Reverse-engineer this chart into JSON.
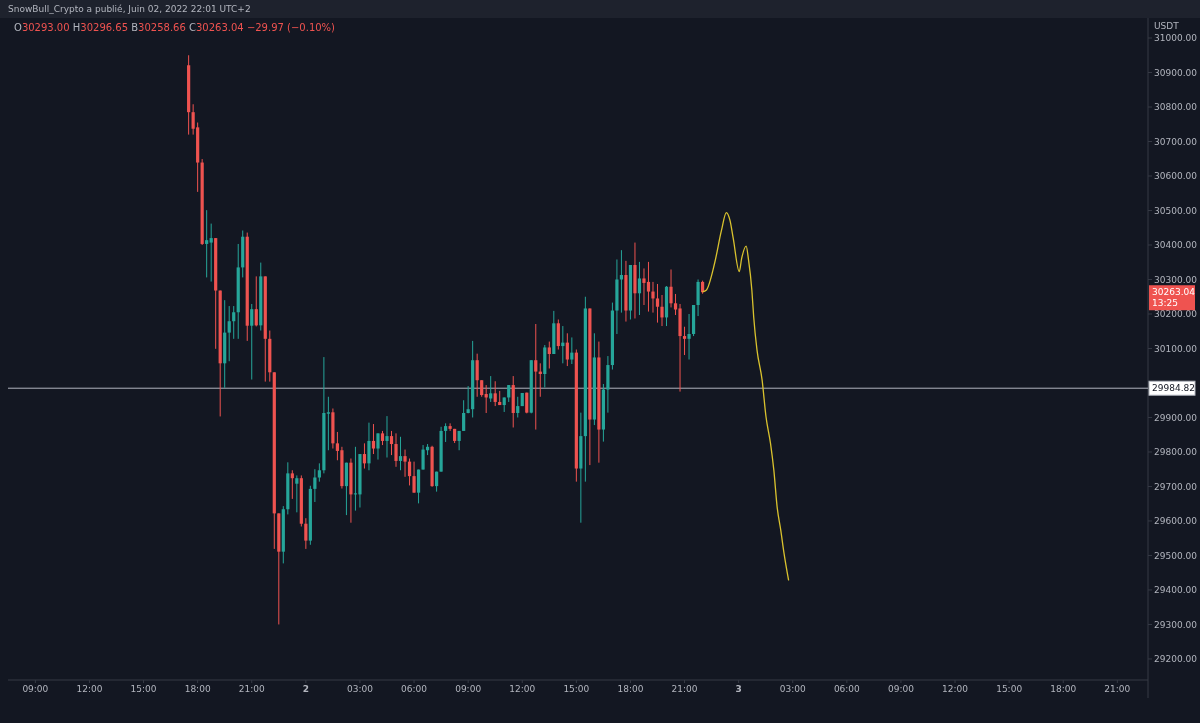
{
  "chart_data": {
    "type": "candlestick",
    "title": "SnowBull_Crypto a publié, Juin 02, 2022 22:01 UTC+2",
    "subtitle": "O30293.00 H30296.65 B30258.66 C30263.04 −29.97 (−0.10%)",
    "ylabel": "USDT",
    "xlim": [
      "2022-06-01T07:29",
      "2022-06-03T22:42"
    ],
    "ylim": [
      29139,
      31058
    ],
    "xticks": [
      {
        "value": "2022-06-01T09:00",
        "label": "09:00"
      },
      {
        "value": "2022-06-01T12:00",
        "label": "12:00"
      },
      {
        "value": "2022-06-01T15:00",
        "label": "15:00"
      },
      {
        "value": "2022-06-01T18:00",
        "label": "18:00"
      },
      {
        "value": "2022-06-01T21:00",
        "label": "21:00"
      },
      {
        "value": "2022-06-02T00:00",
        "label": "2"
      },
      {
        "value": "2022-06-02T03:00",
        "label": "03:00"
      },
      {
        "value": "2022-06-02T06:00",
        "label": "06:00"
      },
      {
        "value": "2022-06-02T09:00",
        "label": "09:00"
      },
      {
        "value": "2022-06-02T12:00",
        "label": "12:00"
      },
      {
        "value": "2022-06-02T15:00",
        "label": "15:00"
      },
      {
        "value": "2022-06-02T18:00",
        "label": "18:00"
      },
      {
        "value": "2022-06-02T21:00",
        "label": "21:00"
      },
      {
        "value": "2022-06-03T00:00",
        "label": "3"
      },
      {
        "value": "2022-06-03T03:00",
        "label": "03:00"
      },
      {
        "value": "2022-06-03T06:00",
        "label": "06:00"
      },
      {
        "value": "2022-06-03T09:00",
        "label": "09:00"
      },
      {
        "value": "2022-06-03T12:00",
        "label": "12:00"
      },
      {
        "value": "2022-06-03T15:00",
        "label": "15:00"
      },
      {
        "value": "2022-06-03T18:00",
        "label": "18:00"
      },
      {
        "value": "2022-06-03T21:00",
        "label": "21:00"
      }
    ],
    "yticks": [
      {
        "value": 29200,
        "label": "29200.00"
      },
      {
        "value": 29300,
        "label": "29300.00"
      },
      {
        "value": 29400,
        "label": "29400.00"
      },
      {
        "value": 29500,
        "label": "29500.00"
      },
      {
        "value": 29600,
        "label": "29600.00"
      },
      {
        "value": 29700,
        "label": "29700.00"
      },
      {
        "value": 29800,
        "label": "29800.00"
      },
      {
        "value": 29900,
        "label": "29900.00"
      },
      {
        "value": 30000,
        "label": null
      },
      {
        "value": 30100,
        "label": "30100.00"
      },
      {
        "value": 30200,
        "label": "30200.00"
      },
      {
        "value": 30300,
        "label": "30300.00"
      },
      {
        "value": 30400,
        "label": "30400.00"
      },
      {
        "value": 30500,
        "label": "30500.00"
      },
      {
        "value": 30600,
        "label": "30600.00"
      },
      {
        "value": 30700,
        "label": "30700.00"
      },
      {
        "value": 30800,
        "label": "30800.00"
      },
      {
        "value": 30900,
        "label": "30900.00"
      },
      {
        "value": 31000,
        "label": "31000.00"
      }
    ],
    "x": [
      "2022-06-01T17:30",
      "2022-06-01T17:45",
      "2022-06-01T18:00",
      "2022-06-01T18:15",
      "2022-06-01T18:30",
      "2022-06-01T18:45",
      "2022-06-01T19:00",
      "2022-06-01T19:15",
      "2022-06-01T19:30",
      "2022-06-01T19:45",
      "2022-06-01T20:00",
      "2022-06-01T20:15",
      "2022-06-01T20:30",
      "2022-06-01T20:45",
      "2022-06-01T21:00",
      "2022-06-01T21:15",
      "2022-06-01T21:30",
      "2022-06-01T21:45",
      "2022-06-01T22:00",
      "2022-06-01T22:15",
      "2022-06-01T22:30",
      "2022-06-01T22:45",
      "2022-06-01T23:00",
      "2022-06-01T23:15",
      "2022-06-01T23:30",
      "2022-06-01T23:45",
      "2022-06-02T00:00",
      "2022-06-02T00:15",
      "2022-06-02T00:30",
      "2022-06-02T00:45",
      "2022-06-02T01:00",
      "2022-06-02T01:15",
      "2022-06-02T01:30",
      "2022-06-02T01:45",
      "2022-06-02T02:00",
      "2022-06-02T02:15",
      "2022-06-02T02:30",
      "2022-06-02T02:45",
      "2022-06-02T03:00",
      "2022-06-02T03:15",
      "2022-06-02T03:30",
      "2022-06-02T03:45",
      "2022-06-02T04:00",
      "2022-06-02T04:15",
      "2022-06-02T04:30",
      "2022-06-02T04:45",
      "2022-06-02T05:00",
      "2022-06-02T05:15",
      "2022-06-02T05:30",
      "2022-06-02T05:45",
      "2022-06-02T06:00",
      "2022-06-02T06:15",
      "2022-06-02T06:30",
      "2022-06-02T06:45",
      "2022-06-02T07:00",
      "2022-06-02T07:15",
      "2022-06-02T07:30",
      "2022-06-02T07:45",
      "2022-06-02T08:00",
      "2022-06-02T08:15",
      "2022-06-02T08:30",
      "2022-06-02T08:45",
      "2022-06-02T09:00",
      "2022-06-02T09:15",
      "2022-06-02T09:30",
      "2022-06-02T09:45",
      "2022-06-02T10:00",
      "2022-06-02T10:15",
      "2022-06-02T10:30",
      "2022-06-02T10:45",
      "2022-06-02T11:00",
      "2022-06-02T11:15",
      "2022-06-02T11:30",
      "2022-06-02T11:45",
      "2022-06-02T12:00",
      "2022-06-02T12:15",
      "2022-06-02T12:30",
      "2022-06-02T12:45",
      "2022-06-02T13:00",
      "2022-06-02T13:15",
      "2022-06-02T13:30",
      "2022-06-02T13:45",
      "2022-06-02T14:00",
      "2022-06-02T14:15",
      "2022-06-02T14:30",
      "2022-06-02T14:45",
      "2022-06-02T15:00",
      "2022-06-02T15:15",
      "2022-06-02T15:30",
      "2022-06-02T15:45",
      "2022-06-02T16:00",
      "2022-06-02T16:15",
      "2022-06-02T16:30",
      "2022-06-02T16:45",
      "2022-06-02T17:00",
      "2022-06-02T17:15",
      "2022-06-02T17:30",
      "2022-06-02T17:45",
      "2022-06-02T18:00",
      "2022-06-02T18:15",
      "2022-06-02T18:30",
      "2022-06-02T18:45",
      "2022-06-02T19:00",
      "2022-06-02T19:15",
      "2022-06-02T19:30",
      "2022-06-02T19:45",
      "2022-06-02T20:00",
      "2022-06-02T20:15",
      "2022-06-02T20:30",
      "2022-06-02T20:45",
      "2022-06-02T21:00",
      "2022-06-02T21:15",
      "2022-06-02T21:30",
      "2022-06-02T21:45",
      "2022-06-02T22:00"
    ],
    "ohlc": [
      [
        30921,
        30950,
        30720,
        30785
      ],
      [
        30785,
        30808,
        30720,
        30737
      ],
      [
        30741,
        30755,
        30554,
        30639
      ],
      [
        30639,
        30649,
        30400,
        30403
      ],
      [
        30403,
        30501,
        30306,
        30414
      ],
      [
        30407,
        30462,
        30294,
        30420
      ],
      [
        30420,
        30420,
        30099,
        30268
      ],
      [
        30268,
        30268,
        29903,
        30057
      ],
      [
        30057,
        30240,
        29986,
        30146
      ],
      [
        30146,
        30223,
        30063,
        30179
      ],
      [
        30179,
        30223,
        30128,
        30205
      ],
      [
        30205,
        30403,
        30128,
        30335
      ],
      [
        30335,
        30442,
        30306,
        30424
      ],
      [
        30424,
        30436,
        30122,
        30166
      ],
      [
        30166,
        30229,
        30010,
        30214
      ],
      [
        30214,
        30309,
        30164,
        30167
      ],
      [
        30167,
        30349,
        30152,
        30309
      ],
      [
        30309,
        30309,
        30004,
        30128
      ],
      [
        30128,
        30152,
        30004,
        30031
      ],
      [
        30031,
        30031,
        29519,
        29622
      ],
      [
        29622,
        29622,
        29300,
        29511
      ],
      [
        29511,
        29643,
        29477,
        29634
      ],
      [
        29634,
        29770,
        29619,
        29738
      ],
      [
        29738,
        29747,
        29664,
        29724
      ],
      [
        29708,
        29732,
        29625,
        29724
      ],
      [
        29724,
        29732,
        29584,
        29592
      ],
      [
        29592,
        29608,
        29519,
        29543
      ],
      [
        29543,
        29702,
        29531,
        29693
      ],
      [
        29693,
        29750,
        29655,
        29726
      ],
      [
        29726,
        29767,
        29714,
        29747
      ],
      [
        29747,
        30075,
        29738,
        29913
      ],
      [
        29911,
        29960,
        29805,
        29915
      ],
      [
        29915,
        29926,
        29810,
        29825
      ],
      [
        29825,
        29858,
        29776,
        29803
      ],
      [
        29805,
        29815,
        29694,
        29701
      ],
      [
        29701,
        29769,
        29617,
        29769
      ],
      [
        29769,
        29781,
        29595,
        29677
      ],
      [
        29677,
        29815,
        29630,
        29680
      ],
      [
        29677,
        29794,
        29639,
        29794
      ],
      [
        29794,
        29825,
        29752,
        29767
      ],
      [
        29767,
        29885,
        29747,
        29832
      ],
      [
        29832,
        29881,
        29794,
        29810
      ],
      [
        29810,
        29854,
        29778,
        29854
      ],
      [
        29854,
        29861,
        29820,
        29832
      ],
      [
        29832,
        29904,
        29784,
        29846
      ],
      [
        29846,
        29861,
        29791,
        29823
      ],
      [
        29823,
        29854,
        29757,
        29774
      ],
      [
        29774,
        29844,
        29747,
        29788
      ],
      [
        29788,
        29807,
        29728,
        29772
      ],
      [
        29772,
        29781,
        29703,
        29730
      ],
      [
        29730,
        29772,
        29682,
        29682
      ],
      [
        29682,
        29749,
        29651,
        29749
      ],
      [
        29749,
        29820,
        29749,
        29807
      ],
      [
        29805,
        29823,
        29791,
        29815
      ],
      [
        29815,
        29818,
        29699,
        29701
      ],
      [
        29701,
        29743,
        29685,
        29743
      ],
      [
        29743,
        29873,
        29743,
        29861
      ],
      [
        29861,
        29883,
        29829,
        29875
      ],
      [
        29875,
        29883,
        29861,
        29867
      ],
      [
        29867,
        29867,
        29826,
        29832
      ],
      [
        29832,
        29861,
        29805,
        29861
      ],
      [
        29861,
        29950,
        29861,
        29913
      ],
      [
        29913,
        29991,
        29912,
        29924
      ],
      [
        29924,
        30122,
        29900,
        30066
      ],
      [
        30066,
        30085,
        29960,
        30008
      ],
      [
        30008,
        30008,
        29960,
        29965
      ],
      [
        29968,
        29994,
        29913,
        29958
      ],
      [
        29955,
        30020,
        29945,
        29970
      ],
      [
        29970,
        30005,
        29933,
        29945
      ],
      [
        29945,
        29977,
        29936,
        29936
      ],
      [
        29936,
        29958,
        29916,
        29958
      ],
      [
        29958,
        29994,
        29945,
        29994
      ],
      [
        29994,
        30020,
        29871,
        29913
      ],
      [
        29913,
        29960,
        29900,
        29933
      ],
      [
        29933,
        29971,
        29933,
        29971
      ],
      [
        29972,
        29972,
        29912,
        29914
      ],
      [
        29914,
        30066,
        29912,
        30066
      ],
      [
        30066,
        30171,
        29865,
        30033
      ],
      [
        30033,
        30057,
        29960,
        30026
      ],
      [
        30026,
        30110,
        29987,
        30103
      ],
      [
        30103,
        30120,
        30042,
        30084
      ],
      [
        30084,
        30209,
        30084,
        30173
      ],
      [
        30173,
        30184,
        30097,
        30107
      ],
      [
        30107,
        30165,
        30057,
        30117
      ],
      [
        30117,
        30144,
        30049,
        30068
      ],
      [
        30068,
        30132,
        30055,
        30088
      ],
      [
        30088,
        30097,
        29714,
        29752
      ],
      [
        29752,
        29914,
        29595,
        29846
      ],
      [
        29846,
        30250,
        29714,
        30216
      ],
      [
        30216,
        30216,
        29762,
        29894
      ],
      [
        29894,
        30144,
        29878,
        30074
      ],
      [
        30074,
        30120,
        29769,
        29865
      ],
      [
        29865,
        29997,
        29830,
        29981
      ],
      [
        29981,
        30078,
        29914,
        30052
      ],
      [
        30052,
        30233,
        30039,
        30210
      ],
      [
        30210,
        30358,
        30142,
        30300
      ],
      [
        30300,
        30385,
        30204,
        30313
      ],
      [
        30313,
        30354,
        30178,
        30210
      ],
      [
        30210,
        30342,
        30184,
        30342
      ],
      [
        30342,
        30407,
        30187,
        30260
      ],
      [
        30260,
        30351,
        30197,
        30303
      ],
      [
        30303,
        30332,
        30226,
        30290
      ],
      [
        30293,
        30351,
        30207,
        30265
      ],
      [
        30265,
        30293,
        30204,
        30245
      ],
      [
        30245,
        30287,
        30175,
        30221
      ],
      [
        30221,
        30255,
        30165,
        30190
      ],
      [
        30190,
        30281,
        30165,
        30279
      ],
      [
        30279,
        30329,
        30219,
        30231
      ],
      [
        30231,
        30258,
        30197,
        30213
      ],
      [
        30216,
        30229,
        29975,
        30136
      ],
      [
        30136,
        30163,
        30081,
        30128
      ],
      [
        30128,
        30200,
        30068,
        30142
      ],
      [
        30142,
        30226,
        30136,
        30226
      ],
      [
        30226,
        30300,
        30194,
        30293
      ],
      [
        30293,
        30296.65,
        30258.66,
        30263.04
      ]
    ],
    "series": [
      {
        "type": "line",
        "color": "#d9c22e",
        "x": [
          "2022-06-02T22:01",
          "2022-06-02T22:12",
          "2022-06-02T22:40",
          "2022-06-02T23:03",
          "2022-06-02T23:19",
          "2022-06-02T23:31",
          "2022-06-02T23:42",
          "2022-06-03T00:02",
          "2022-06-03T00:10",
          "2022-06-03T00:25",
          "2022-06-03T00:33",
          "2022-06-03T00:44",
          "2022-06-03T00:50",
          "2022-06-03T01:01",
          "2022-06-03T01:18",
          "2022-06-03T01:31",
          "2022-06-03T01:46",
          "2022-06-03T01:57",
          "2022-06-03T02:08",
          "2022-06-03T02:20",
          "2022-06-03T02:31",
          "2022-06-03T02:46"
        ],
        "values": [
          30265,
          30269,
          30347,
          30443,
          30494,
          30472,
          30419,
          30323,
          30361,
          30397,
          30356,
          30269,
          30192,
          30096,
          30009,
          29902,
          29825,
          29748,
          29641,
          29574,
          29506,
          29429
        ]
      }
    ],
    "ref_lines": [
      {
        "axis": "y",
        "value": 29984.82,
        "label": "29984.82",
        "color": "#b2b5be"
      }
    ],
    "annotations": [
      "30263.04",
      "13:25"
    ]
  }
}
